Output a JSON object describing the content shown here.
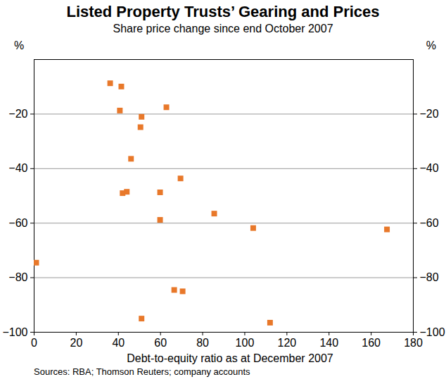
{
  "chart_data": {
    "type": "scatter",
    "title": "Listed Property Trusts’ Gearing and Prices",
    "subtitle": "Share price change since end October 2007",
    "ylabel": "%",
    "xlabel": "Debt-to-equity ratio as at December 2007",
    "source": "Sources: RBA; Thomson Reuters; company accounts",
    "x": [
      36.1,
      41.4,
      40.7,
      62.8,
      51,
      50.5,
      46,
      69.5,
      42,
      44,
      59.8,
      59.8,
      85.5,
      104,
      167.5,
      1,
      66.5,
      70.5,
      51,
      112
    ],
    "values": [
      -8.7,
      -9.9,
      -18.7,
      -17.5,
      -21,
      -24.8,
      -36.4,
      -43.6,
      -49,
      -48.5,
      -48.7,
      -58.8,
      -56.5,
      -61.8,
      -62.3,
      -74.5,
      -84.5,
      -85,
      -95,
      -96.5
    ],
    "color": "#e8782a",
    "marker": "square",
    "xlim": [
      0,
      180
    ],
    "xticks": [
      0,
      20,
      40,
      60,
      80,
      100,
      120,
      140,
      160,
      180
    ],
    "ylim": [
      -100,
      0
    ],
    "yticks": [
      -100,
      -80,
      -60,
      -40,
      -20
    ],
    "grid": true
  }
}
